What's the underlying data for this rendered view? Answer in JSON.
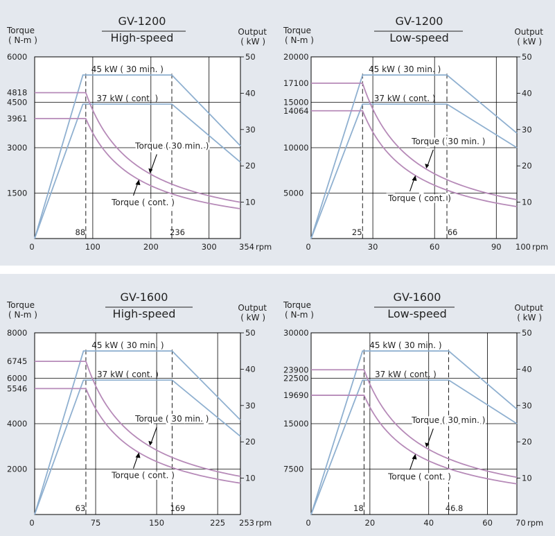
{
  "colors": {
    "panel_bg": "#e4e8ee",
    "plot_bg": "#ffffff",
    "output_line": "#8fb0d0",
    "torque_line": "#b68ab8",
    "grid": "#000000"
  },
  "chart_data": [
    {
      "type": "line",
      "title": "GV-1200",
      "subtitle": "High-speed",
      "ylabel_left": [
        "Torque",
        "( N-m )"
      ],
      "ylabel_right": [
        "Output",
        "( kW )"
      ],
      "x_unit": "rpm",
      "xlim": [
        0,
        354
      ],
      "ylim_left": [
        0,
        6000
      ],
      "ylim_right": [
        0,
        50
      ],
      "x_ticks": [
        {
          "v": 0,
          "label": "0"
        },
        {
          "v": 100,
          "label": "100"
        },
        {
          "v": 200,
          "label": "200"
        },
        {
          "v": 300,
          "label": "300"
        },
        {
          "v": 354,
          "label": "354"
        }
      ],
      "x_markers": [
        {
          "v": 88,
          "label": "88"
        },
        {
          "v": 236,
          "label": "236"
        }
      ],
      "y_left_ticks": [
        {
          "v": 1500,
          "label": "1500"
        },
        {
          "v": 3000,
          "label": "3000"
        },
        {
          "v": 3961,
          "label": "3961"
        },
        {
          "v": 4500,
          "label": "4500"
        },
        {
          "v": 4818,
          "label": "4818"
        },
        {
          "v": 6000,
          "label": "6000"
        }
      ],
      "y_right_ticks": [
        {
          "v": 10,
          "label": "10"
        },
        {
          "v": 20,
          "label": "20"
        },
        {
          "v": 30,
          "label": "30"
        },
        {
          "v": 40,
          "label": "40"
        },
        {
          "v": 50,
          "label": "50"
        }
      ],
      "grid_x": [
        100,
        200,
        300
      ],
      "grid_y": [
        1500,
        3000,
        4500
      ],
      "output_series": [
        {
          "name": "45 kW ( 30 min. )",
          "points": [
            [
              0,
              0
            ],
            [
              83,
              45
            ],
            [
              236,
              45
            ],
            [
              354,
              25.5
            ]
          ]
        },
        {
          "name": "37 kW ( cont. )",
          "points": [
            [
              0,
              0
            ],
            [
              83,
              37
            ],
            [
              236,
              37
            ],
            [
              354,
              21
            ]
          ]
        }
      ],
      "torque_series": [
        {
          "name": "Torque ( 30 min. )",
          "flat": 4818,
          "knee": 88,
          "end": 354,
          "axis_max": 6000
        },
        {
          "name": "Torque ( cont. )",
          "flat": 3961,
          "knee": 88,
          "end": 354,
          "axis_max": 6000
        }
      ],
      "annotations": {
        "torque_30": "Torque ( 30 min. )",
        "torque_cont": "Torque ( cont. )"
      }
    },
    {
      "type": "line",
      "title": "GV-1200",
      "subtitle": "Low-speed",
      "ylabel_left": [
        "Torque",
        "( N-m )"
      ],
      "ylabel_right": [
        "Output",
        "( kW )"
      ],
      "x_unit": "rpm",
      "xlim": [
        0,
        100
      ],
      "ylim_left": [
        0,
        20000
      ],
      "ylim_right": [
        0,
        50
      ],
      "x_ticks": [
        {
          "v": 0,
          "label": "0"
        },
        {
          "v": 30,
          "label": "30"
        },
        {
          "v": 60,
          "label": "60"
        },
        {
          "v": 90,
          "label": "90"
        },
        {
          "v": 100,
          "label": "100"
        }
      ],
      "x_markers": [
        {
          "v": 25,
          "label": "25"
        },
        {
          "v": 66,
          "label": "66"
        }
      ],
      "y_left_ticks": [
        {
          "v": 5000,
          "label": "5000"
        },
        {
          "v": 10000,
          "label": "10000"
        },
        {
          "v": 14064,
          "label": "14064"
        },
        {
          "v": 15000,
          "label": "15000"
        },
        {
          "v": 17100,
          "label": "17100"
        },
        {
          "v": 20000,
          "label": "20000"
        }
      ],
      "y_right_ticks": [
        {
          "v": 10,
          "label": "10"
        },
        {
          "v": 20,
          "label": "20"
        },
        {
          "v": 30,
          "label": "30"
        },
        {
          "v": 40,
          "label": "40"
        },
        {
          "v": 50,
          "label": "50"
        }
      ],
      "grid_x": [
        30,
        60,
        90
      ],
      "grid_y": [
        5000,
        10000,
        15000
      ],
      "output_series": [
        {
          "name": "45 kW ( 30 min. )",
          "points": [
            [
              0,
              0
            ],
            [
              25,
              45
            ],
            [
              66,
              45
            ],
            [
              100,
              29
            ]
          ]
        },
        {
          "name": "37 kW ( cont. )",
          "points": [
            [
              0,
              0
            ],
            [
              25,
              37
            ],
            [
              66,
              37
            ],
            [
              100,
              25
            ]
          ]
        }
      ],
      "torque_series": [
        {
          "name": "Torque ( 30 min. )",
          "flat": 17100,
          "knee": 25,
          "end": 100,
          "axis_max": 20000
        },
        {
          "name": "Torque ( cont. )",
          "flat": 14064,
          "knee": 25,
          "end": 100,
          "axis_max": 20000
        }
      ],
      "annotations": {
        "torque_30": "Torque ( 30 min. )",
        "torque_cont": "Torque ( cont. )"
      }
    },
    {
      "type": "line",
      "title": "GV-1600",
      "subtitle": "High-speed",
      "ylabel_left": [
        "Torque",
        "( N-m )"
      ],
      "ylabel_right": [
        "Output",
        "( kW )"
      ],
      "x_unit": "rpm",
      "xlim": [
        0,
        253
      ],
      "ylim_left": [
        0,
        8000
      ],
      "ylim_right": [
        0,
        50
      ],
      "x_ticks": [
        {
          "v": 0,
          "label": "0"
        },
        {
          "v": 75,
          "label": "75"
        },
        {
          "v": 150,
          "label": "150"
        },
        {
          "v": 225,
          "label": "225"
        },
        {
          "v": 253,
          "label": "253"
        }
      ],
      "x_markers": [
        {
          "v": 63,
          "label": "63"
        },
        {
          "v": 169,
          "label": "169"
        }
      ],
      "y_left_ticks": [
        {
          "v": 2000,
          "label": "2000"
        },
        {
          "v": 4000,
          "label": "4000"
        },
        {
          "v": 5546,
          "label": "5546"
        },
        {
          "v": 6000,
          "label": "6000"
        },
        {
          "v": 6745,
          "label": "6745"
        },
        {
          "v": 8000,
          "label": "8000"
        }
      ],
      "y_right_ticks": [
        {
          "v": 10,
          "label": "10"
        },
        {
          "v": 20,
          "label": "20"
        },
        {
          "v": 30,
          "label": "30"
        },
        {
          "v": 40,
          "label": "40"
        },
        {
          "v": 50,
          "label": "50"
        }
      ],
      "grid_x": [
        75,
        150,
        225
      ],
      "grid_y": [
        2000,
        4000,
        6000
      ],
      "output_series": [
        {
          "name": "45 kW ( 30 min. )",
          "points": [
            [
              0,
              0
            ],
            [
              60,
              45
            ],
            [
              169,
              45
            ],
            [
              253,
              26
            ]
          ]
        },
        {
          "name": "37 kW ( cont. )",
          "points": [
            [
              0,
              0
            ],
            [
              60,
              37
            ],
            [
              169,
              37
            ],
            [
              253,
              21.5
            ]
          ]
        }
      ],
      "torque_series": [
        {
          "name": "Torque ( 30 min. )",
          "flat": 6745,
          "knee": 63,
          "end": 253,
          "axis_max": 8000
        },
        {
          "name": "Torque ( cont. )",
          "flat": 5546,
          "knee": 63,
          "end": 253,
          "axis_max": 8000
        }
      ],
      "annotations": {
        "torque_30": "Torque ( 30 min. )",
        "torque_cont": "Torque ( cont. )"
      }
    },
    {
      "type": "line",
      "title": "GV-1600",
      "subtitle": "Low-speed",
      "ylabel_left": [
        "Torque",
        "( N-m )"
      ],
      "ylabel_right": [
        "Output",
        "( kW )"
      ],
      "x_unit": "rpm",
      "xlim": [
        0,
        70
      ],
      "ylim_left": [
        0,
        30000
      ],
      "ylim_right": [
        0,
        50
      ],
      "x_ticks": [
        {
          "v": 0,
          "label": "0"
        },
        {
          "v": 20,
          "label": "20"
        },
        {
          "v": 40,
          "label": "40"
        },
        {
          "v": 60,
          "label": "60"
        },
        {
          "v": 70,
          "label": "70"
        }
      ],
      "x_markers": [
        {
          "v": 18,
          "label": "18"
        },
        {
          "v": 46.8,
          "label": "46.8"
        }
      ],
      "y_left_ticks": [
        {
          "v": 7500,
          "label": "7500"
        },
        {
          "v": 15000,
          "label": "15000"
        },
        {
          "v": 19690,
          "label": "19690"
        },
        {
          "v": 22500,
          "label": "22500"
        },
        {
          "v": 23900,
          "label": "23900"
        },
        {
          "v": 30000,
          "label": "30000"
        }
      ],
      "y_right_ticks": [
        {
          "v": 10,
          "label": "10"
        },
        {
          "v": 20,
          "label": "20"
        },
        {
          "v": 30,
          "label": "30"
        },
        {
          "v": 40,
          "label": "40"
        },
        {
          "v": 50,
          "label": "50"
        }
      ],
      "grid_x": [
        20,
        40,
        60
      ],
      "grid_y": [
        7500,
        15000,
        22500
      ],
      "output_series": [
        {
          "name": "45 kW ( 30 min. )",
          "points": [
            [
              0,
              0
            ],
            [
              17.5,
              45
            ],
            [
              46.8,
              45
            ],
            [
              70,
              29
            ]
          ]
        },
        {
          "name": "37 kW ( cont. )",
          "points": [
            [
              0,
              0
            ],
            [
              17.5,
              37
            ],
            [
              46.8,
              37
            ],
            [
              70,
              25
            ]
          ]
        }
      ],
      "torque_series": [
        {
          "name": "Torque ( 30 min. )",
          "flat": 23900,
          "knee": 18,
          "end": 70,
          "axis_max": 30000
        },
        {
          "name": "Torque ( cont. )",
          "flat": 19690,
          "knee": 18,
          "end": 70,
          "axis_max": 30000
        }
      ],
      "annotations": {
        "torque_30": "Torque ( 30 min. )",
        "torque_cont": "Torque ( cont. )"
      }
    }
  ]
}
